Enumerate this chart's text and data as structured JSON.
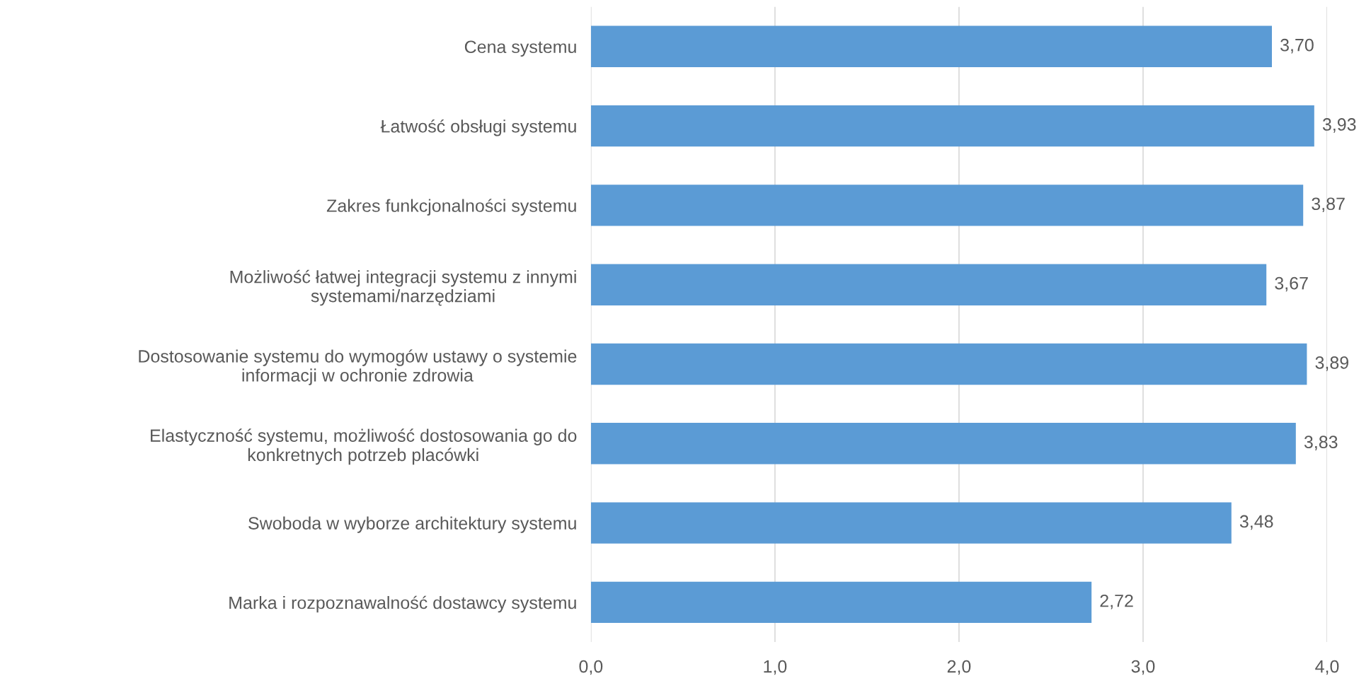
{
  "chart_data": {
    "type": "bar",
    "orientation": "horizontal",
    "categories": [
      "Cena systemu",
      "Łatwość obsługi systemu",
      "Zakres funkcjonalności systemu",
      "Możliwość łatwej integracji systemu z innymi\nsystemami/narzędziami",
      "Dostosowanie systemu do wymogów ustawy o systemie\ninformacji w ochronie zdrowia",
      "Elastyczność systemu, możliwość dostosowania go do\nkonkretnych potrzeb placówki",
      "Swoboda w wyborze architektury systemu",
      "Marka i rozpoznawalność dostawcy systemu"
    ],
    "values": [
      3.7,
      3.93,
      3.87,
      3.67,
      3.89,
      3.83,
      3.48,
      2.72
    ],
    "value_labels": [
      "3,70",
      "3,93",
      "3,87",
      "3,67",
      "3,89",
      "3,83",
      "3,48",
      "2,72"
    ],
    "color": "#5b9bd5",
    "xlim": [
      0,
      4
    ],
    "xticks": [
      {
        "value": 0,
        "label": "0,0"
      },
      {
        "value": 1,
        "label": "1,0"
      },
      {
        "value": 2,
        "label": "2,0"
      },
      {
        "value": 3,
        "label": "3,0"
      },
      {
        "value": 4,
        "label": "4,0"
      }
    ],
    "grid": "x"
  }
}
